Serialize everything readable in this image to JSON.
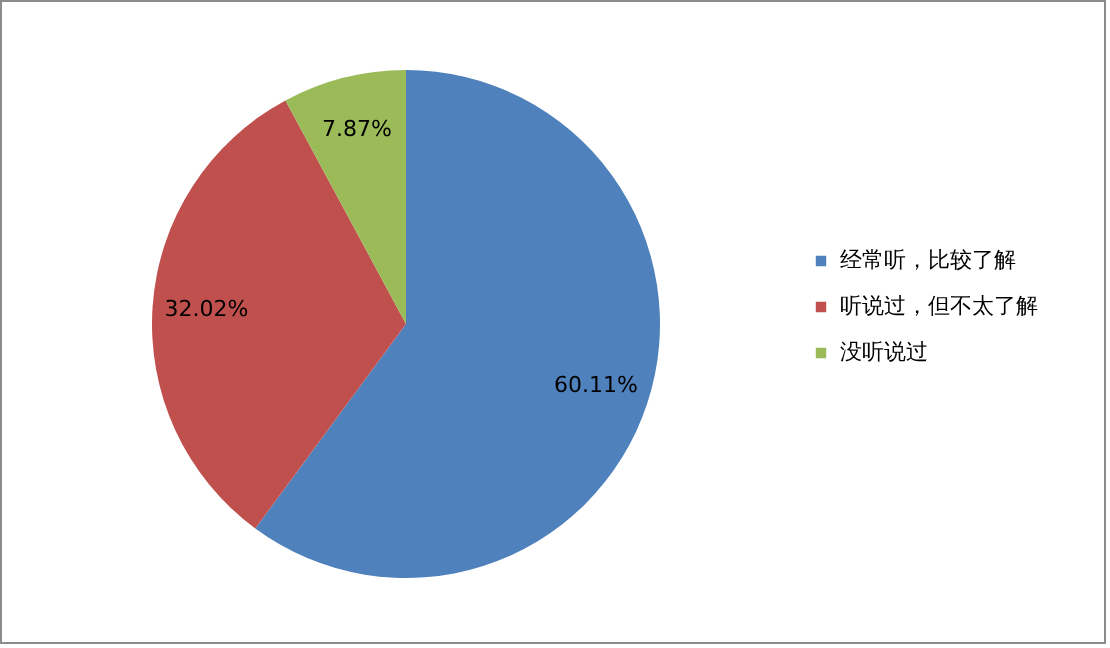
{
  "chart_data": {
    "type": "pie",
    "categories": [
      "经常听，比较了解",
      "听说过，但不太了解",
      "没听说过"
    ],
    "values": [
      60.11,
      32.02,
      7.87
    ],
    "colors": [
      "#4f81bd",
      "#c0504d",
      "#9bbb59"
    ],
    "value_labels": [
      "60.11%",
      "32.02%",
      "7.87%"
    ],
    "legend": "right"
  }
}
